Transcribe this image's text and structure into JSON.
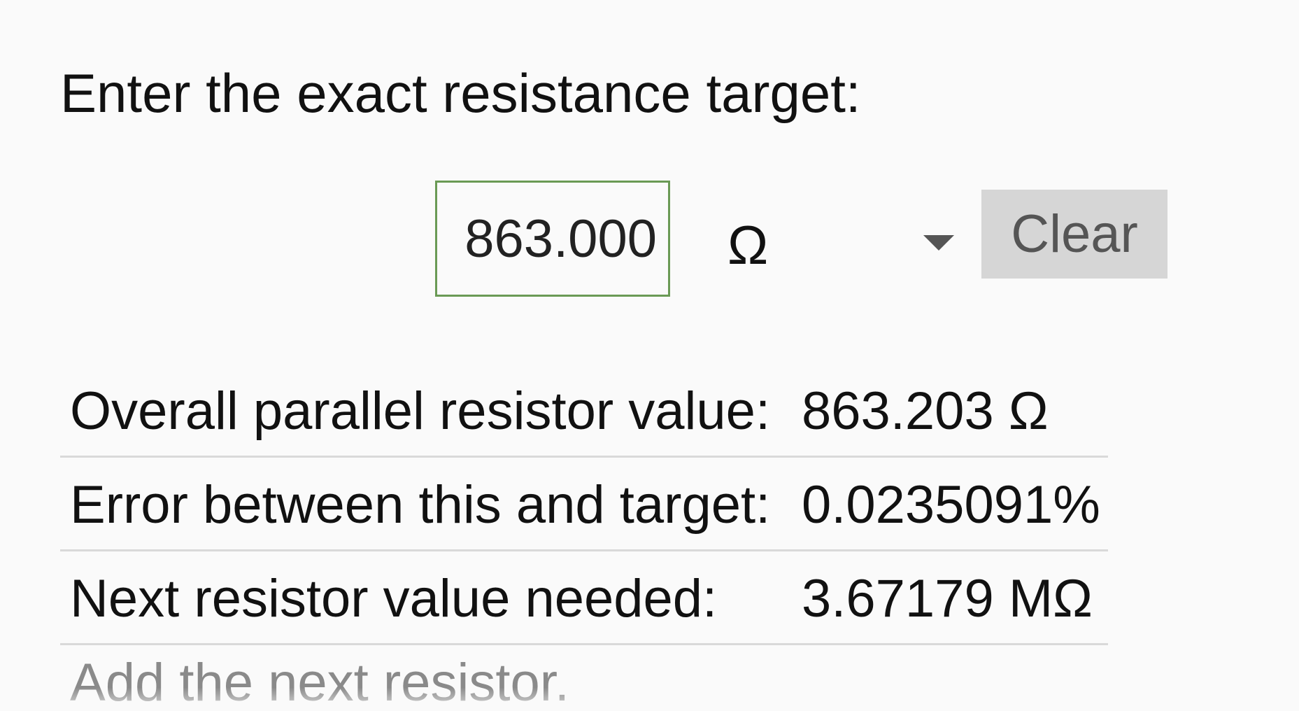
{
  "prompt": "Enter the exact resistance target:",
  "target_input": {
    "value": "863.000"
  },
  "unit_select": {
    "selected": "Ω"
  },
  "clear_button": {
    "label": "Clear"
  },
  "results": [
    {
      "label": "Overall parallel resistor value:",
      "value": "863.203 Ω"
    },
    {
      "label": "Error between this and target:",
      "value": "0.0235091%"
    },
    {
      "label": "Next resistor value needed:",
      "value": "3.67179 MΩ"
    }
  ],
  "add_hint": "Add the next resistor."
}
